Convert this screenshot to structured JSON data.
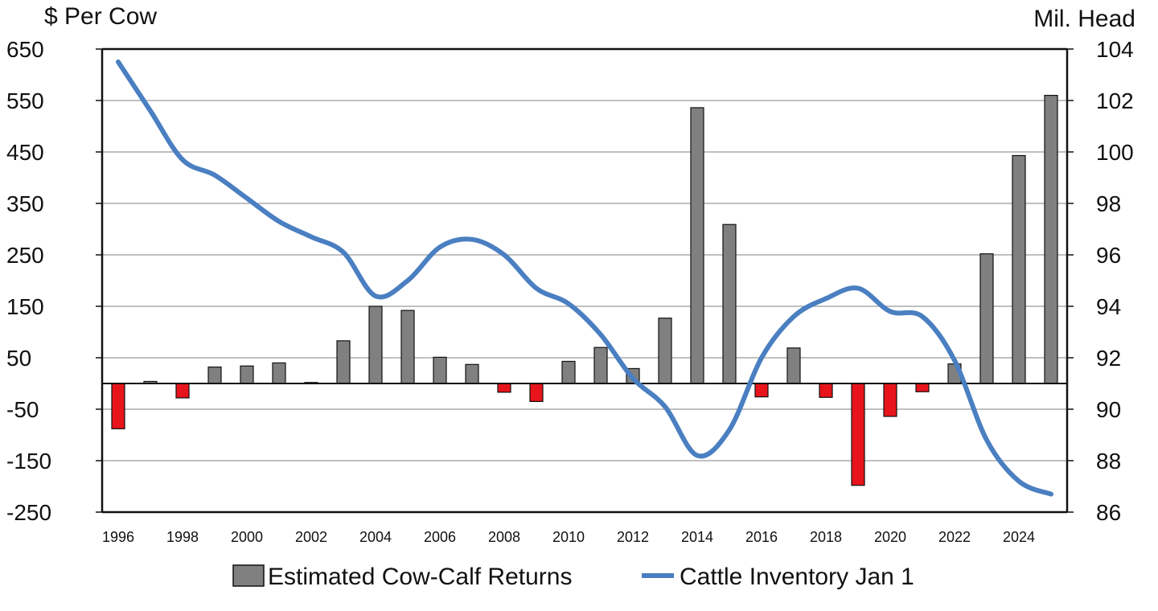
{
  "chart_data": {
    "type": "bar",
    "title": "",
    "left_axis_title": "$ Per Cow",
    "right_axis_title": "Mil. Head",
    "years": [
      1996,
      1997,
      1998,
      1999,
      2000,
      2001,
      2002,
      2003,
      2004,
      2005,
      2006,
      2007,
      2008,
      2009,
      2010,
      2011,
      2012,
      2013,
      2014,
      2015,
      2016,
      2017,
      2018,
      2019,
      2020,
      2021,
      2022,
      2023,
      2024,
      2025
    ],
    "x_tick_labels": [
      "1996",
      "1998",
      "2000",
      "2002",
      "2004",
      "2006",
      "2008",
      "2010",
      "2012",
      "2014",
      "2016",
      "2018",
      "2020",
      "2022",
      "2024"
    ],
    "series": [
      {
        "name": "Estimated Cow-Calf Returns",
        "kind": "bar",
        "axis": "left",
        "values": [
          -88,
          4,
          -28,
          32,
          34,
          40,
          2,
          83,
          150,
          142,
          51,
          37,
          -17,
          -35,
          43,
          70,
          29,
          127,
          536,
          309,
          -26,
          69,
          -27,
          -198,
          -64,
          -16,
          38,
          252,
          443,
          560
        ],
        "positive_color": "#808080",
        "negative_color": "#e8141b"
      },
      {
        "name": "Cattle Inventory Jan 1",
        "kind": "line",
        "axis": "right",
        "values": [
          103.5,
          101.6,
          99.7,
          99.1,
          98.2,
          97.3,
          96.7,
          96.1,
          94.4,
          95.0,
          96.3,
          96.6,
          96.0,
          94.7,
          94.1,
          92.9,
          91.2,
          90.1,
          88.2,
          89.2,
          92.0,
          93.6,
          94.3,
          94.7,
          93.8,
          93.6,
          91.9,
          88.8,
          87.2,
          86.7
        ],
        "color": "#4a7fc1"
      }
    ],
    "left_ylim": [
      -250,
      650
    ],
    "left_yticks": [
      "650",
      "550",
      "450",
      "350",
      "250",
      "150",
      "50",
      "-50",
      "-150",
      "-250"
    ],
    "right_ylim": [
      86,
      104
    ],
    "right_yticks": [
      "104",
      "102",
      "100",
      "98",
      "96",
      "94",
      "92",
      "90",
      "88",
      "86"
    ],
    "grid": true,
    "legend_position": "bottom-center"
  }
}
